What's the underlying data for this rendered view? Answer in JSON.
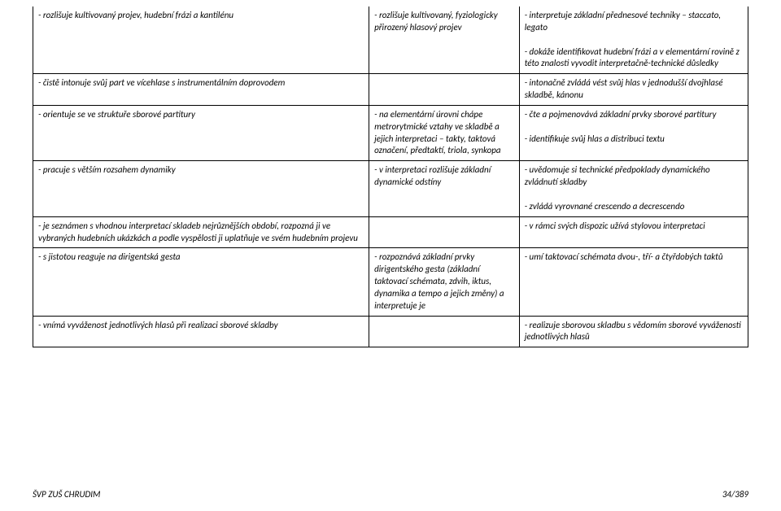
{
  "table": {
    "border_color": "#000000",
    "background": "#ffffff",
    "font_family": "Calibri",
    "font_size_pt": 9,
    "font_style": "italic",
    "columns": [
      47,
      21,
      32
    ],
    "rows": [
      {
        "c1": "- rozlišuje kultivovaný projev, hudební frázi a kantilénu",
        "c2": "- rozlišuje kultivovaný, fyziologicky přirozený hlasový projev",
        "c3": "- interpretuje základní přednesové techniky – staccato, legato\n\n- dokáže identifikovat hudební frázi a v elementární rovině z této znalosti vyvodit interpretačně-technické důsledky"
      },
      {
        "c1": "- čistě intonuje svůj part ve vícehlase s instrumentálním doprovodem",
        "c2": "",
        "c3": "- intonačně zvládá vést svůj hlas v jednodušší dvojhlasé skladbě, kánonu"
      },
      {
        "c1": "- orientuje se ve struktuře sborové partitury",
        "c2": "- na elementární úrovni chápe metrorytmické vztahy ve skladbě a jejich interpretaci – takty, taktová označení, předtaktí, triola, synkopa",
        "c3": "- čte a pojmenovává základní prvky sborové partitury\n\n- identifikuje svůj hlas a distribuci textu"
      },
      {
        "c1": "- pracuje s větším rozsahem dynamiky",
        "c2": "- v interpretaci rozlišuje základní dynamické odstíny",
        "c3": "- uvědomuje si technické předpoklady dynamického zvládnutí skladby\n\n- zvládá vyrovnané crescendo a decrescendo"
      },
      {
        "c1": "- je seznámen s vhodnou interpretací skladeb nejrůznějších období, rozpozná ji ve vybraných hudebních ukázkách a podle vyspělosti ji uplatňuje ve svém hudebním projevu",
        "c2": "",
        "c3": "- v rámci svých dispozic užívá stylovou interpretaci"
      },
      {
        "c1": "- s jistotou reaguje na dirigentská gesta",
        "c2": "- rozpoznává základní prvky dirigentského gesta (základní taktovací schémata, zdvih, iktus, dynamika a tempo a jejich změny) a interpretuje je",
        "c3": "- umí taktovací schémata dvou-, tří- a čtyřdobých taktů"
      },
      {
        "c1": "- vnímá vyváženost jednotlivých hlasů při realizaci sborové skladby",
        "c2": "",
        "c3": "- realizuje sborovou skladbu s vědomím sborové vyváženosti jednotlivých hlasů"
      }
    ]
  },
  "footer": {
    "left": "ŠVP ZUŠ CHRUDIM",
    "right": "34/389"
  }
}
